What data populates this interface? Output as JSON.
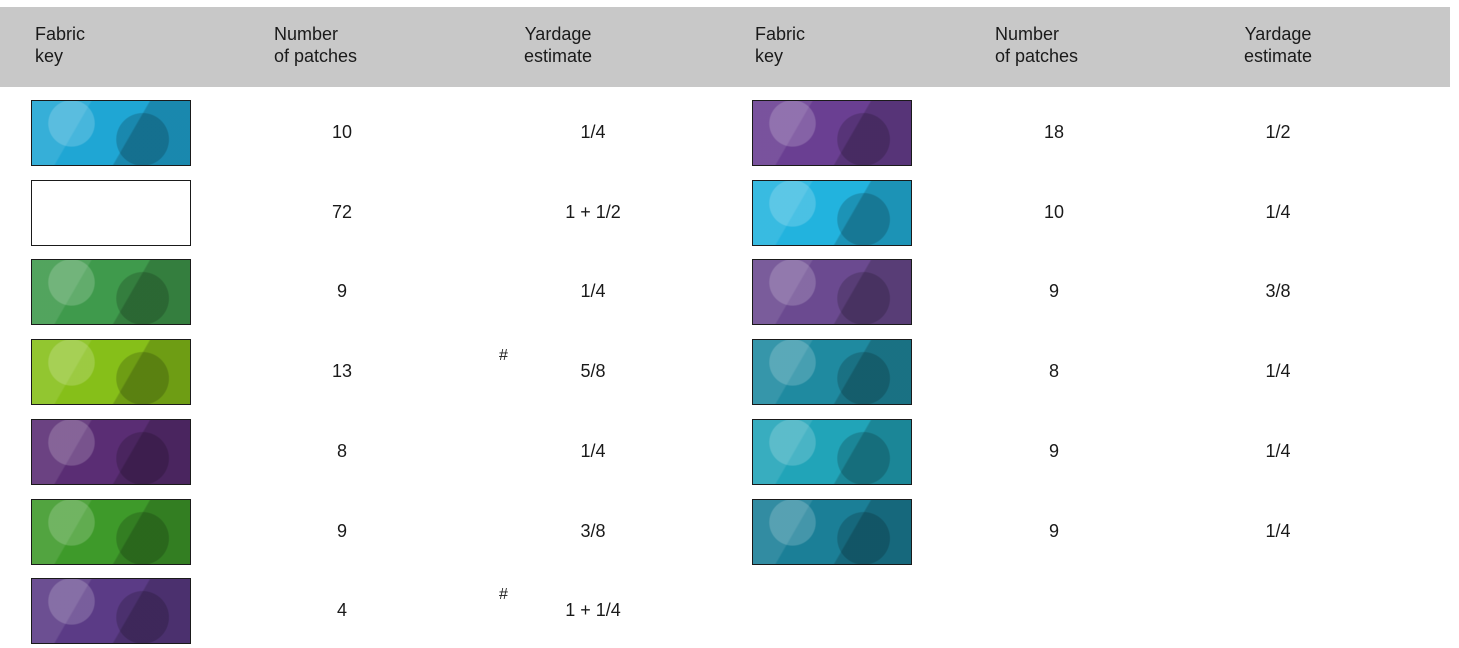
{
  "header": {
    "left": {
      "c1a": "Fabric",
      "c1b": "key",
      "c2a": "Number",
      "c2b": "of patches",
      "c3a": "Yardage",
      "c3b": "estimate"
    },
    "right": {
      "c1a": "Fabric",
      "c1b": "key",
      "c2a": "Number",
      "c2b": "of patches",
      "c3a": "Yardage",
      "c3b": "estimate"
    }
  },
  "left_rows": [
    {
      "swatch": "teal-blue batik",
      "patches": "10",
      "yardage": "1/4",
      "mark": ""
    },
    {
      "swatch": "white",
      "patches": "72",
      "yardage": "1 + 1/2",
      "mark": ""
    },
    {
      "swatch": "green leaf batik",
      "patches": "9",
      "yardage": "1/4",
      "mark": ""
    },
    {
      "swatch": "lime green batik",
      "patches": "13",
      "yardage": "5/8",
      "mark": "#"
    },
    {
      "swatch": "purple fern batik",
      "patches": "8",
      "yardage": "1/4",
      "mark": ""
    },
    {
      "swatch": "green swirl batik",
      "patches": "9",
      "yardage": "3/8",
      "mark": ""
    },
    {
      "swatch": "purple-blue batik",
      "patches": "4",
      "yardage": "1 + 1/4",
      "mark": "#"
    }
  ],
  "right_rows": [
    {
      "swatch": "purple leaf batik",
      "patches": "18",
      "yardage": "1/2",
      "mark": ""
    },
    {
      "swatch": "turquoise batik",
      "patches": "10",
      "yardage": "1/4",
      "mark": ""
    },
    {
      "swatch": "purple-gold batik",
      "patches": "9",
      "yardage": "3/8",
      "mark": ""
    },
    {
      "swatch": "teal dot batik",
      "patches": "8",
      "yardage": "1/4",
      "mark": ""
    },
    {
      "swatch": "aqua floral batik",
      "patches": "9",
      "yardage": "1/4",
      "mark": ""
    },
    {
      "swatch": "deep teal circle batik",
      "patches": "9",
      "yardage": "1/4",
      "mark": ""
    }
  ],
  "colors": {
    "header_bg": "#c8c8c8",
    "swatches_left": [
      "#1fa6d4",
      "#ffffff",
      "#3f9a4c",
      "#86bf19",
      "#5a2d74",
      "#3e9a2a",
      "#5b3b86"
    ],
    "swatches_right": [
      "#6a3f92",
      "#22b3de",
      "#6b4a90",
      "#1f8aa0",
      "#21a4b8",
      "#1b7f97"
    ]
  }
}
